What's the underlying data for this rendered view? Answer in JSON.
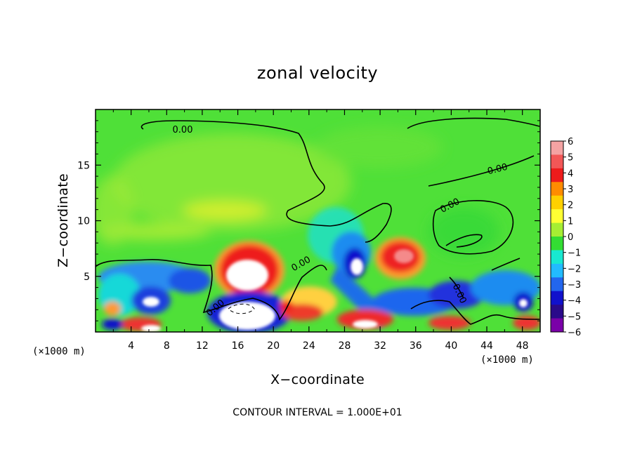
{
  "chart_data": {
    "type": "heatmap",
    "title": "zonal velocity",
    "xlabel": "X−coordinate",
    "ylabel": "Z−coordinate",
    "x_unit": "(×1000 m)",
    "y_unit": "(×1000 m)",
    "xlim": [
      0,
      50
    ],
    "ylim": [
      0,
      20
    ],
    "x_ticks": [
      4,
      8,
      12,
      16,
      20,
      24,
      28,
      32,
      36,
      40,
      44,
      48
    ],
    "x_tick_labels": [
      "4",
      "8",
      "12",
      "16",
      "20",
      "24",
      "28",
      "32",
      "36",
      "40",
      "44",
      "48"
    ],
    "y_ticks": [
      5,
      10,
      15
    ],
    "y_tick_labels": [
      "5",
      "10",
      "15"
    ],
    "colorbar": {
      "levels": [
        6,
        5,
        4,
        3,
        2,
        1,
        0,
        -1,
        -2,
        -3,
        -4,
        -5,
        -6
      ],
      "labels": [
        "6",
        "5",
        "4",
        "3",
        "2",
        "1",
        "0",
        "−1",
        "−2",
        "−3",
        "−4",
        "−5",
        "−6"
      ],
      "colors": [
        "#f4a3a3",
        "#f25757",
        "#ee1b1b",
        "#ff8c00",
        "#ffd000",
        "#ffff33",
        "#a6ee33",
        "#33dd33",
        "#18e8d0",
        "#22bbff",
        "#2266ee",
        "#1111cc",
        "#2a0a8a",
        "#7a00a8"
      ]
    },
    "contour_labels": [
      "0.00",
      "0.00",
      "0.00",
      "0.00",
      "0.00",
      "0.00"
    ],
    "annotation": "CONTOUR INTERVAL = 1.000E+01"
  }
}
